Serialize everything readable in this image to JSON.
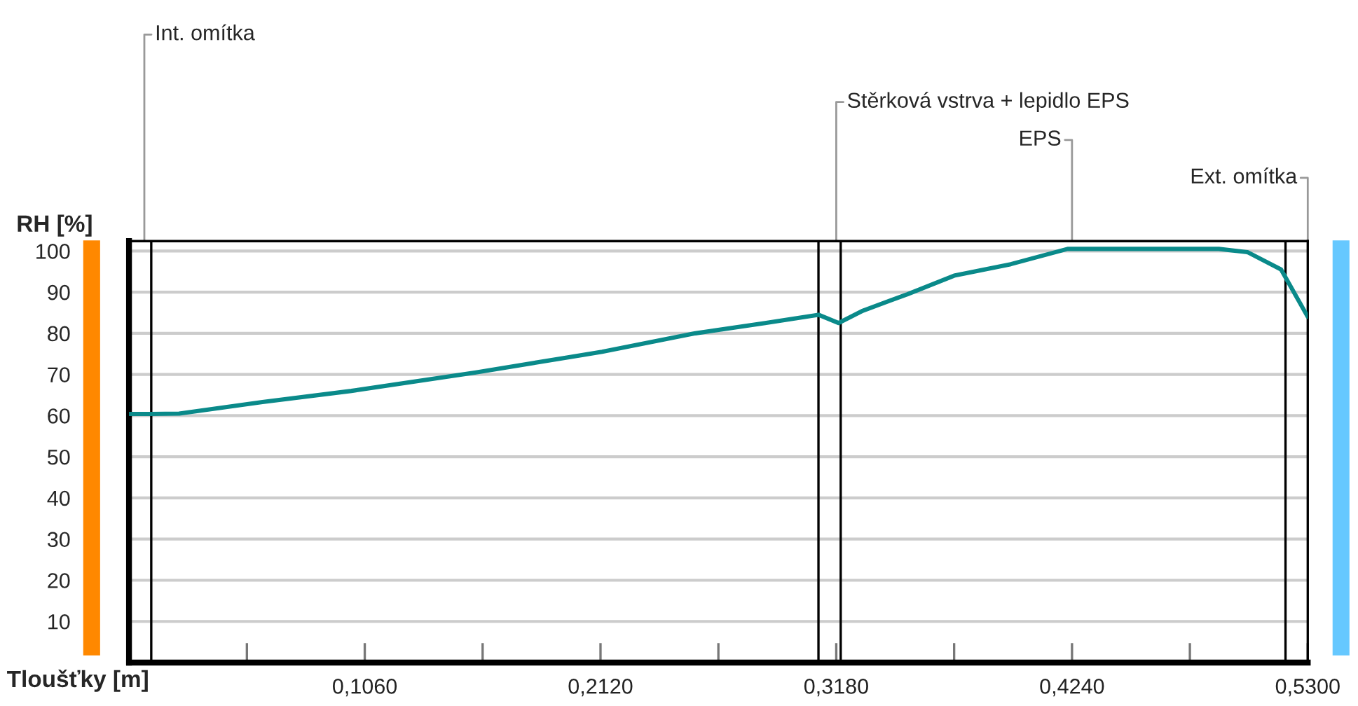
{
  "chart_data": {
    "type": "line",
    "xlabel": "Tloušťky [m]",
    "ylabel": "RH [%]",
    "x": [
      0,
      0.01,
      0.0226,
      0.06,
      0.1,
      0.156,
      0.2127,
      0.2547,
      0.286,
      0.31,
      0.319,
      0.33,
      0.35,
      0.371,
      0.3965,
      0.422,
      0.49,
      0.503,
      0.518,
      0.53
    ],
    "series": [
      {
        "color": "#0a8a8a",
        "values": [
          60.4,
          60.4,
          60.5,
          63.3,
          66,
          70.5,
          75.5,
          80,
          82.5,
          84.5,
          82.5,
          85.5,
          89.5,
          94,
          96.8,
          100.5,
          100.5,
          99.7,
          95.5,
          84
        ]
      }
    ],
    "xlim": [
      0,
      0.53
    ],
    "ylim": [
      0,
      102.4
    ],
    "xticks": [
      {
        "value": 0.053,
        "label": null
      },
      {
        "value": 0.106,
        "label": "0,1060"
      },
      {
        "value": 0.159,
        "label": null
      },
      {
        "value": 0.212,
        "label": "0,2120"
      },
      {
        "value": 0.265,
        "label": null
      },
      {
        "value": 0.318,
        "label": "0,3180"
      },
      {
        "value": 0.371,
        "label": null
      },
      {
        "value": 0.424,
        "label": "0,4240"
      },
      {
        "value": 0.477,
        "label": null
      },
      {
        "value": 0.53,
        "label": "0,5300"
      }
    ],
    "yticks": [
      10,
      20,
      30,
      40,
      50,
      60,
      70,
      80,
      90,
      100
    ],
    "grid": "y",
    "legend": false,
    "marker": "none",
    "line_style": "solid",
    "ref_lines": [
      {
        "axis": "x",
        "value": 0.01,
        "color": "#000000"
      },
      {
        "axis": "x",
        "value": 0.31,
        "color": "#000000"
      },
      {
        "axis": "x",
        "value": 0.32,
        "color": "#000000"
      },
      {
        "axis": "x",
        "value": 0.52,
        "color": "#000000"
      }
    ],
    "annotations": [
      "Int. omítka",
      "Stěrková vstrva + lepidlo EPS",
      "EPS",
      "Ext. omítka"
    ]
  }
}
